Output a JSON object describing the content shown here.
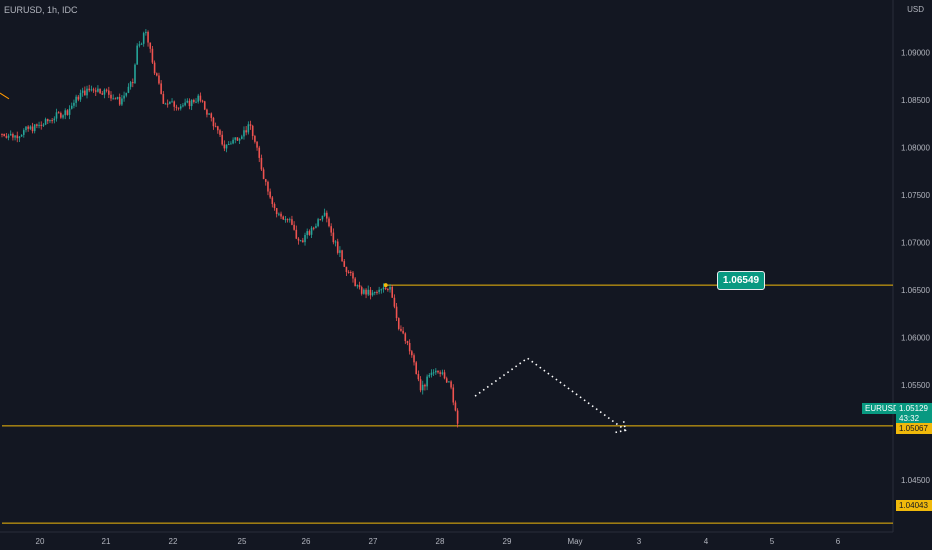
{
  "header": {
    "symbol_interval_source": "EURUSD, 1h, IDC",
    "currency": "USD"
  },
  "colors": {
    "background": "#131722",
    "up": "#26a69a",
    "down": "#ef5350",
    "level": "#f0b90b",
    "axis_text": "#b2b5be",
    "projection": "#ffffff"
  },
  "price_tags": {
    "symbol": "EURUSD",
    "last_price": "1.05129",
    "countdown": "43:32",
    "level_1": "1.05067",
    "level_2": "1.04043",
    "callout": "1.06549"
  },
  "chart_data": {
    "type": "candlestick",
    "title": "",
    "xlabel": "",
    "ylabel": "",
    "ylim": [
      1.0395,
      1.0955
    ],
    "y_ticks": [
      "1.09000",
      "1.08500",
      "1.08000",
      "1.07500",
      "1.07000",
      "1.06500",
      "1.06000",
      "1.05500",
      "1.04500"
    ],
    "x_ticks": [
      "20",
      "21",
      "22",
      "25",
      "26",
      "27",
      "28",
      "29",
      "May",
      "3",
      "4",
      "5",
      "6"
    ],
    "grid": false,
    "close_path": [
      [
        0,
        1.0814
      ],
      [
        6,
        1.0812
      ],
      [
        12,
        1.0819
      ],
      [
        18,
        1.0823
      ],
      [
        24,
        1.0832
      ],
      [
        30,
        1.0838
      ],
      [
        36,
        1.0856
      ],
      [
        42,
        1.0862
      ],
      [
        48,
        1.0858
      ],
      [
        54,
        1.0848
      ],
      [
        60,
        1.0868
      ],
      [
        62,
        1.0905
      ],
      [
        66,
        1.092
      ],
      [
        70,
        1.088
      ],
      [
        74,
        1.0849
      ],
      [
        78,
        1.0845
      ],
      [
        84,
        1.0844
      ],
      [
        90,
        1.0852
      ],
      [
        96,
        1.083
      ],
      [
        102,
        1.08
      ],
      [
        108,
        1.0811
      ],
      [
        114,
        1.0822
      ],
      [
        120,
        1.077
      ],
      [
        126,
        1.073
      ],
      [
        132,
        1.0722
      ],
      [
        136,
        1.07
      ],
      [
        142,
        1.0712
      ],
      [
        148,
        1.0735
      ],
      [
        152,
        1.0703
      ],
      [
        158,
        1.0672
      ],
      [
        164,
        1.0649
      ],
      [
        170,
        1.0645
      ],
      [
        176,
        1.0651
      ],
      [
        178,
        1.0655
      ],
      [
        182,
        1.0612
      ],
      [
        188,
        1.058
      ],
      [
        192,
        1.0545
      ],
      [
        196,
        1.0558
      ],
      [
        202,
        1.0566
      ],
      [
        206,
        1.0545
      ],
      [
        209,
        1.0513
      ]
    ],
    "levels": [
      {
        "value": 1.06549,
        "from_bar": 176
      },
      {
        "value": 1.05067,
        "from_bar": 0
      },
      {
        "value": 1.04043,
        "from_bar": 0
      }
    ],
    "projection_path": [
      [
        217,
        1.0538
      ],
      [
        241,
        1.0578
      ],
      [
        286,
        1.0502
      ]
    ]
  }
}
